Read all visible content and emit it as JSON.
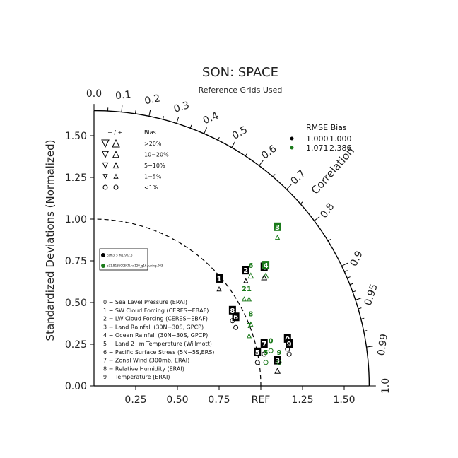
{
  "title": "SON: SPACE",
  "subtitle": "Reference Grids Used",
  "ylabel": "Standardized Deviations (Normalized)",
  "correlation_label": "Correlation",
  "ref_label": "REF",
  "colors": {
    "black": "#000000",
    "green": "#1a7a1a",
    "open_black": "#333333"
  },
  "bias_legend": {
    "header": [
      "− / +",
      "Bias"
    ],
    "rows": [
      ">20%",
      "10−20%",
      "5−10%",
      "1−5%",
      "<1%"
    ]
  },
  "rmse_legend": {
    "header": "RMSE  Bias",
    "rows": [
      {
        "rmse": "1.000",
        "bias": "1.000",
        "color": "#000000"
      },
      {
        "rmse": "1.071",
        "bias": "2.386",
        "color": "#1a7a1a"
      }
    ]
  },
  "case_legend": [
    {
      "label": "cam3_5_fv1.9x2.5",
      "color": "#000000"
    },
    {
      "label": "b31.B1850CSCN.ne120_g16.tuning.003",
      "color": "#1a7a1a"
    }
  ],
  "variables": [
    "0 − Sea Level Pressure (ERAI)",
    "1 − SW Cloud Forcing (CERES−EBAF)",
    "2 − LW Cloud Forcing (CERES−EBAF)",
    "3 − Land Rainfall (30N−30S, GPCP)",
    "4 − Ocean Rainfall (30N−30S, GPCP)",
    "5 − Land 2−m Temperature (Willmott)",
    "6 − Pacific Surface Stress (5N−5S,ERS)",
    "7 − Zonal Wind (300mb, ERAI)",
    "8 − Relative Humidity (ERAI)",
    "9 − Temperature (ERAI)"
  ],
  "chart_data": {
    "type": "scatter",
    "plot_kind": "taylor_diagram",
    "title": "SON: SPACE",
    "subtitle": "Reference Grids Used",
    "ylabel": "Standardized Deviations (Normalized)",
    "xlim": [
      0,
      1.65
    ],
    "ylim": [
      0,
      1.65
    ],
    "x_ticks": [
      "0.25",
      "0.50",
      "0.75",
      "REF",
      "1.25",
      "1.50"
    ],
    "x_tick_values": [
      0.25,
      0.5,
      0.75,
      1.0,
      1.25,
      1.5
    ],
    "y_ticks": [
      "0.00",
      "0.25",
      "0.50",
      "0.75",
      "1.00",
      "1.25",
      "1.50"
    ],
    "y_tick_values": [
      0,
      0.25,
      0.5,
      0.75,
      1.0,
      1.25,
      1.5
    ],
    "corr_ticks": [
      "0.0",
      "0.1",
      "0.2",
      "0.3",
      "0.4",
      "0.5",
      "0.6",
      "0.7",
      "0.8",
      "0.9",
      "0.95",
      "0.99",
      "1.0"
    ],
    "corr_tick_values": [
      0.0,
      0.1,
      0.2,
      0.3,
      0.4,
      0.5,
      0.6,
      0.7,
      0.8,
      0.9,
      0.95,
      0.99,
      1.0
    ],
    "outer_radius": 1.65,
    "ref_radius": 1.0,
    "series": [
      {
        "name": "cam3_5_fv1.9x2.5",
        "color": "#000000",
        "points": [
          {
            "id": "0",
            "x": 1.16,
            "y": 0.28,
            "bias": "<1%"
          },
          {
            "id": "1",
            "x": 0.75,
            "y": 0.64,
            "bias": "1-5%"
          },
          {
            "id": "2",
            "x": 0.91,
            "y": 0.69,
            "bias": "1-5%"
          },
          {
            "id": "3",
            "x": 1.1,
            "y": 0.15,
            "bias": "5-10%"
          },
          {
            "id": "4",
            "x": 1.02,
            "y": 0.71,
            "bias": "5-10%"
          },
          {
            "id": "5",
            "x": 0.98,
            "y": 0.2,
            "bias": "<1%"
          },
          {
            "id": "6",
            "x": 0.85,
            "y": 0.41,
            "bias": "<1%"
          },
          {
            "id": "7",
            "x": 1.02,
            "y": 0.25,
            "bias": "<1%"
          },
          {
            "id": "8",
            "x": 0.83,
            "y": 0.45,
            "bias": "<1%"
          },
          {
            "id": "9",
            "x": 1.17,
            "y": 0.25,
            "bias": "<1%"
          }
        ]
      },
      {
        "name": "b31.B1850CSCN.ne120_g16.tuning.003",
        "color": "#1a7a1a",
        "points": [
          {
            "id": "0",
            "x": 1.06,
            "y": 0.27,
            "bias": "<1%"
          },
          {
            "id": "1",
            "x": 0.93,
            "y": 0.58,
            "bias": "1-5%"
          },
          {
            "id": "2",
            "x": 0.9,
            "y": 0.58,
            "bias": "1-5%"
          },
          {
            "id": "3",
            "x": 1.1,
            "y": 0.95,
            "bias": "1-5%"
          },
          {
            "id": "4",
            "x": 1.03,
            "y": 0.72,
            "bias": "5-10%"
          },
          {
            "id": "5",
            "x": 1.03,
            "y": 0.2,
            "bias": "<1%"
          },
          {
            "id": "6",
            "x": 0.94,
            "y": 0.72,
            "bias": "5-10%"
          },
          {
            "id": "7",
            "x": 0.93,
            "y": 0.36,
            "bias": "1-5%"
          },
          {
            "id": "8",
            "x": 0.94,
            "y": 0.43,
            "bias": "1-5%"
          },
          {
            "id": "9",
            "x": 1.11,
            "y": 0.2,
            "bias": "<1%"
          }
        ]
      }
    ]
  }
}
